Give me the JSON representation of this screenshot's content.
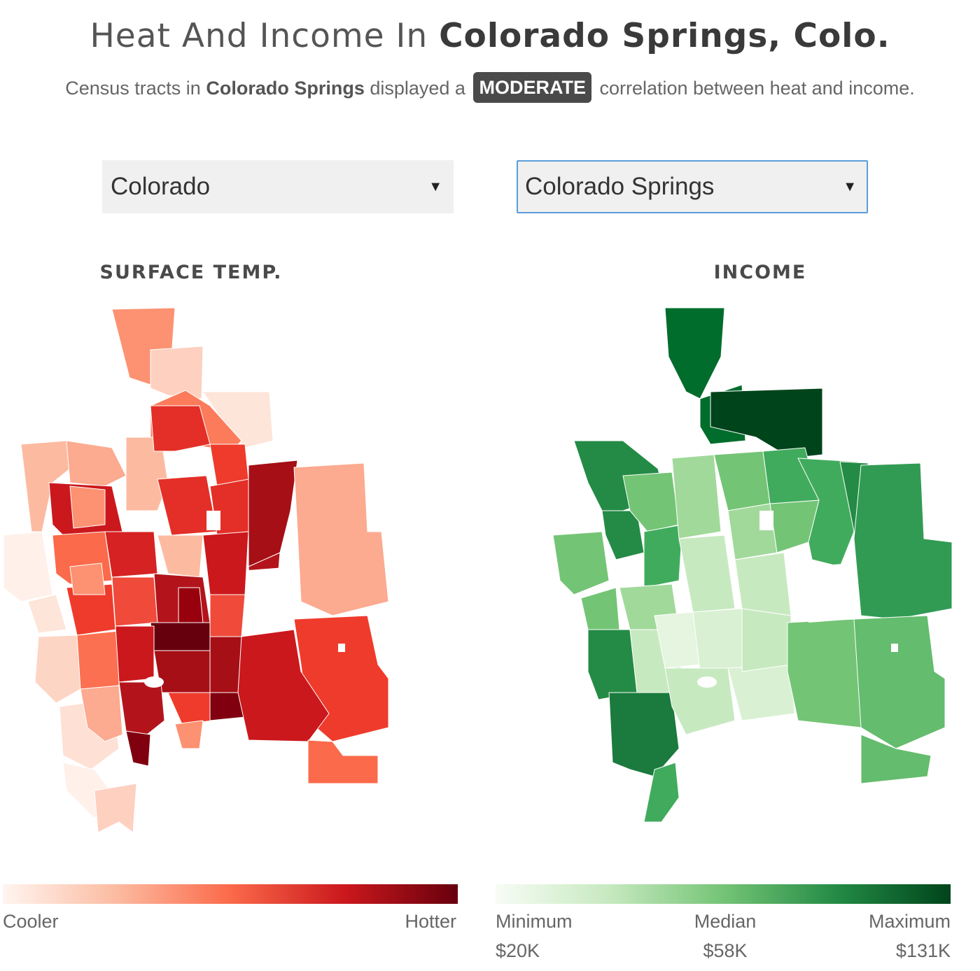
{
  "header": {
    "title_prefix": "Heat And Income In ",
    "title_city": "Colorado Springs, Colo.",
    "subtitle_pre": "Census tracts in ",
    "subtitle_city": "Colorado Springs",
    "subtitle_mid": " displayed a ",
    "subtitle_badge": "MODERATE",
    "subtitle_post": " correlation between heat and income."
  },
  "controls": {
    "state_select": "Colorado",
    "city_select": "Colorado Springs",
    "dropdown_glyph": "▼"
  },
  "maps": {
    "temp_title": "SURFACE TEMP.",
    "income_title": "INCOME"
  },
  "legend_temp": {
    "low_label": "Cooler",
    "high_label": "Hotter",
    "colors": [
      "#fff5f0",
      "#fcbba1",
      "#fb6a4a",
      "#cb181d",
      "#67000d"
    ]
  },
  "legend_income": {
    "labels": [
      "Minimum",
      "Median",
      "Maximum"
    ],
    "values": [
      "$20K",
      "$58K",
      "$131K"
    ],
    "colors": [
      "#f7fcf5",
      "#c7e9c0",
      "#74c476",
      "#238b45",
      "#00441b"
    ]
  }
}
